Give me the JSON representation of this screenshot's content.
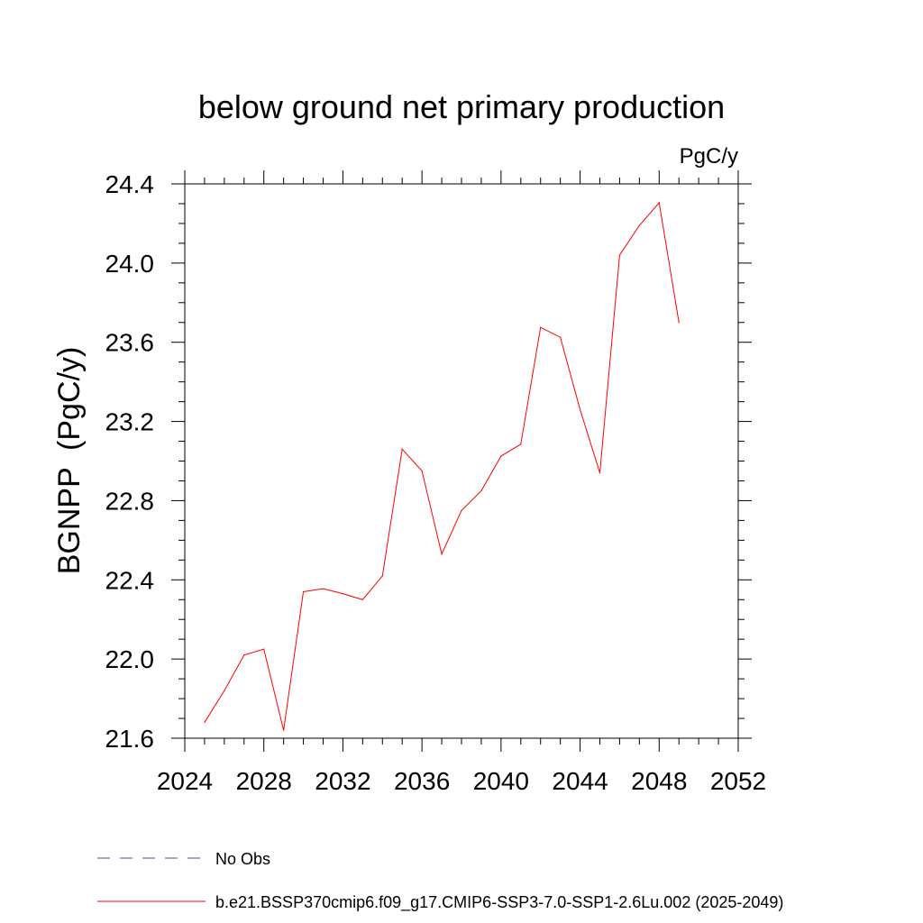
{
  "chart_data": {
    "type": "line",
    "title": "below ground net primary production",
    "units_label": "PgC/y",
    "xlabel": "",
    "ylabel": "BGNPP  (PgC/y)",
    "xlim": [
      2024,
      2052
    ],
    "ylim": [
      21.6,
      24.4
    ],
    "x_ticks": [
      2024,
      2028,
      2032,
      2036,
      2040,
      2044,
      2048,
      2052
    ],
    "x_tick_labels": [
      "2024",
      "2028",
      "2032",
      "2036",
      "2040",
      "2044",
      "2048",
      "2052"
    ],
    "y_ticks": [
      21.6,
      22.0,
      22.4,
      22.8,
      23.2,
      23.6,
      24.0,
      24.4
    ],
    "y_tick_labels": [
      "21.6",
      "22.0",
      "22.4",
      "22.8",
      "23.2",
      "23.6",
      "24.0",
      "24.4"
    ],
    "grid": false,
    "legend_position": "bottom-left",
    "series": [
      {
        "name": "b.e21.BSSP370cmip6.f09_g17.CMIP6-SSP3-7.0-SSP1-2.6Lu.002 (2025-2049)",
        "color": "#ff0000",
        "line_style": "solid",
        "x": [
          2025,
          2026,
          2027,
          2028,
          2029,
          2030,
          2031,
          2032,
          2033,
          2034,
          2035,
          2036,
          2037,
          2038,
          2039,
          2040,
          2041,
          2042,
          2043,
          2044,
          2045,
          2046,
          2047,
          2048,
          2049
        ],
        "values": [
          21.68,
          21.84,
          22.02,
          22.05,
          21.64,
          22.34,
          22.355,
          22.33,
          22.3,
          22.42,
          23.06,
          22.95,
          22.53,
          22.75,
          22.85,
          23.025,
          23.085,
          23.675,
          23.625,
          23.26,
          22.94,
          24.04,
          24.19,
          24.305,
          23.7
        ]
      }
    ],
    "legend": [
      {
        "label": "No Obs",
        "color": "#4d4d99",
        "line_style": "dashed"
      },
      {
        "label": "b.e21.BSSP370cmip6.f09_g17.CMIP6-SSP3-7.0-SSP1-2.6Lu.002 (2025-2049)",
        "color": "#ff0000",
        "line_style": "solid"
      }
    ]
  }
}
